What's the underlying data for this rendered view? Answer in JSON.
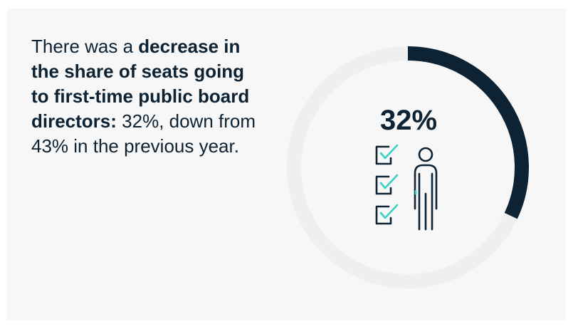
{
  "headline": {
    "intro": "There was a ",
    "bold_text": "decrease in the share of seats going to first-time public board directors:",
    "detail": "32%, down from 43% in the previous year."
  },
  "chart_data": {
    "type": "pie",
    "variant": "donut",
    "values": [
      32,
      68
    ],
    "center_label": "32%",
    "colors": {
      "filled": "#0d2233",
      "track": "#efefef",
      "accent": "#3ad0c4"
    },
    "icon": "person-with-checklist-icon"
  }
}
